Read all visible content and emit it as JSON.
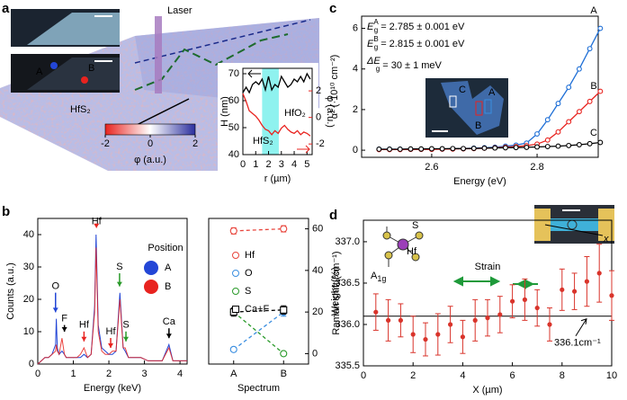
{
  "chart_data": [
    {
      "type": "line",
      "label": "a",
      "annotations": [
        "Laser",
        "HfS₂"
      ],
      "image_labels": [
        "A",
        "B"
      ],
      "inset_labels": [
        "HfS₂",
        "HfO₂"
      ],
      "highlight": [
        1.5,
        2.8
      ],
      "colorbar": {
        "lim": [
          -2,
          2
        ],
        "ticks": [
          -2,
          0,
          2
        ],
        "label": "φ (a.u.)"
      },
      "xlabel": "r (µm)",
      "ylabel": "H (nm)",
      "y2label": "φ (a.u.)",
      "xlim": [
        0,
        5.4
      ],
      "xticks": [
        0,
        1,
        2,
        3,
        4,
        5
      ],
      "ylim": [
        40,
        72
      ],
      "yticks": [
        40,
        50,
        60,
        70
      ],
      "y2lim": [
        -2.8,
        3.7
      ],
      "y2ticks": [
        -2,
        0,
        2
      ],
      "y2color": "#e8231f",
      "x": [
        0,
        0.25,
        0.5,
        0.75,
        1,
        1.25,
        1.5,
        1.75,
        2,
        2.25,
        2.5,
        2.75,
        3,
        3.25,
        3.5,
        3.75,
        4,
        4.25,
        4.5,
        4.75,
        5,
        5.25
      ],
      "series": [
        {
          "color": "#000000",
          "values": [
            63,
            65,
            63,
            66,
            67,
            66,
            68,
            64,
            69,
            64,
            66,
            65,
            69,
            67,
            65,
            66,
            68,
            67,
            69,
            67,
            70,
            68
          ]
        },
        {
          "color": "#e8231f",
          "axis": "y2",
          "values": [
            1.8,
            1.2,
            0.5,
            0.3,
            0.1,
            -0.2,
            -0.6,
            -0.9,
            -1.0,
            -1.3,
            -1.0,
            -1.2,
            -0.8,
            -0.6,
            -0.9,
            -1.1,
            -1.2,
            -1.0,
            -1.3,
            -1.1,
            -1.2,
            -1.4
          ]
        }
      ]
    },
    {
      "type": "line",
      "label": "b",
      "legend_title": "Position",
      "peaks": [
        {
          "text": "O",
          "color": "#2346d6"
        },
        {
          "text": "F",
          "color": "#000000"
        },
        {
          "text": "Hf",
          "color": "#e8231f"
        },
        {
          "text": "Hf",
          "color": "#e8231f"
        },
        {
          "text": "Hf",
          "color": "#e8231f"
        },
        {
          "text": "S",
          "color": "#2a9a2a"
        },
        {
          "text": "S",
          "color": "#2a9a2a"
        },
        {
          "text": "Ca",
          "color": "#000000"
        }
      ],
      "xlabel": "Energy (keV)",
      "ylabel": "Counts (a.u.)",
      "xlim": [
        0,
        4.2
      ],
      "xticks": [
        0,
        1,
        2,
        3,
        4
      ],
      "ylim": [
        0,
        45
      ],
      "yticks": [
        0,
        10,
        20,
        30,
        40
      ],
      "x": [
        0,
        0.1,
        0.2,
        0.3,
        0.4,
        0.5,
        0.52,
        0.55,
        0.6,
        0.68,
        0.75,
        0.8,
        0.9,
        1.0,
        1.1,
        1.2,
        1.3,
        1.4,
        1.5,
        1.6,
        1.64,
        1.7,
        1.8,
        1.9,
        2.0,
        2.1,
        2.2,
        2.31,
        2.4,
        2.46,
        2.55,
        2.7,
        2.9,
        3.1,
        3.3,
        3.5,
        3.69,
        3.8,
        4.0,
        4.2
      ],
      "series": [
        {
          "name": "A",
          "color": "#2346d6",
          "values": [
            0,
            1,
            2,
            2,
            3,
            6,
            14,
            5,
            3,
            4,
            3,
            2,
            2,
            2,
            2,
            2,
            3,
            2,
            3,
            18,
            40,
            12,
            5,
            4,
            3,
            3,
            4,
            22,
            5,
            4,
            2,
            2,
            2,
            1,
            1,
            1,
            6,
            1,
            1,
            1
          ]
        },
        {
          "name": "B",
          "color": "#e8231f",
          "values": [
            0,
            1,
            2,
            2,
            3,
            4,
            6,
            4,
            3,
            8,
            3,
            2,
            2,
            2,
            2,
            3,
            5,
            2,
            3,
            16,
            36,
            10,
            4,
            3,
            3,
            4,
            4,
            20,
            5,
            5,
            2,
            2,
            2,
            1,
            1,
            1,
            5,
            1,
            1,
            1
          ]
        }
      ]
    },
    {
      "type": "line",
      "yaxis_side": "right",
      "xlabel": "Spectrum",
      "ylabel": "Weight (%)",
      "categories": [
        "A",
        "B"
      ],
      "ylim": [
        -5,
        65
      ],
      "yticks": [
        0,
        20,
        40,
        60
      ],
      "series": [
        {
          "name": "Hf",
          "color": "#e8453c",
          "marker": "circle",
          "dashed": true,
          "values": [
            59,
            60
          ],
          "errors": [
            1.5,
            1.5
          ]
        },
        {
          "name": "O",
          "color": "#3a8ee0",
          "marker": "circle",
          "dashed": true,
          "values": [
            2,
            20
          ],
          "errors": [
            1,
            2
          ]
        },
        {
          "name": "S",
          "color": "#2a9a2a",
          "marker": "circle",
          "dashed": true,
          "values": [
            20,
            0
          ],
          "errors": [
            1,
            1
          ]
        },
        {
          "name": "Ca+F",
          "color": "#000000",
          "marker": "square",
          "dashed": true,
          "values": [
            20,
            21
          ],
          "errors": [
            2,
            2
          ]
        }
      ]
    },
    {
      "type": "line",
      "label": "c",
      "equations": [
        {
          "symbol": "E",
          "sub": "g",
          "sup": "A",
          "text": " = 2.785 ± 0.001 eV",
          "color": "#000000"
        },
        {
          "symbol": "E",
          "sub": "g",
          "sup": "B",
          "text": " = 2.815 ± 0.001 eV",
          "color": "#000000"
        },
        {
          "symbol": "ΔE",
          "sub": "g",
          "sup": "",
          "text": " = 30 ± 1 meV",
          "color": "#e8231f"
        }
      ],
      "inset_labels": [
        "C",
        "A",
        "B"
      ],
      "xlabel": "Energy (eV)",
      "ylabel": "α² (·10¹⁰ cm⁻²)",
      "xlim": [
        2.467,
        2.916
      ],
      "xticks": [
        2.6,
        2.8
      ],
      "ylim": [
        -0.35,
        6.6
      ],
      "yticks": [
        0,
        2,
        4,
        6
      ],
      "x": [
        2.5,
        2.52,
        2.54,
        2.56,
        2.58,
        2.6,
        2.62,
        2.64,
        2.66,
        2.68,
        2.7,
        2.72,
        2.74,
        2.76,
        2.78,
        2.8,
        2.82,
        2.84,
        2.86,
        2.88,
        2.9,
        2.92
      ],
      "series": [
        {
          "name": "A",
          "color": "#1f6fd6",
          "marker": "circle",
          "values": [
            0.05,
            0.05,
            0.05,
            0.05,
            0.05,
            0.05,
            0.06,
            0.07,
            0.08,
            0.1,
            0.12,
            0.15,
            0.2,
            0.25,
            0.35,
            0.8,
            1.5,
            2.3,
            3.1,
            4.0,
            5.0,
            6.0
          ]
        },
        {
          "name": "B",
          "color": "#e8231f",
          "marker": "circle",
          "values": [
            0.03,
            0.03,
            0.03,
            0.04,
            0.04,
            0.04,
            0.05,
            0.06,
            0.07,
            0.08,
            0.1,
            0.12,
            0.15,
            0.18,
            0.22,
            0.3,
            0.5,
            0.9,
            1.4,
            1.9,
            2.4,
            2.9
          ]
        },
        {
          "name": "C",
          "color": "#000000",
          "marker": "circle",
          "values": [
            0.05,
            0.05,
            0.05,
            0.06,
            0.06,
            0.07,
            0.07,
            0.08,
            0.08,
            0.09,
            0.1,
            0.11,
            0.12,
            0.13,
            0.14,
            0.16,
            0.18,
            0.2,
            0.23,
            0.27,
            0.32,
            0.38
          ]
        }
      ]
    },
    {
      "type": "scatter",
      "label": "d",
      "annotations": [
        "Strain",
        "Hf",
        "S",
        "x"
      ],
      "mode": {
        "main": "A",
        "sub": "1g"
      },
      "hline": 336.1,
      "hline_label": "336.1cm⁻¹",
      "xlabel": "X (µm)",
      "ylabel": "Raman shift (cm⁻¹)",
      "xlim": [
        0,
        10
      ],
      "xticks": [
        0,
        2,
        4,
        6,
        8,
        10
      ],
      "ylim": [
        335.5,
        337.26
      ],
      "yticks": [
        {
          "value": 335.5,
          "label": "335.5"
        },
        {
          "value": 336,
          "label": "336.0"
        },
        {
          "value": 336.5,
          "label": "336.5"
        },
        {
          "value": 337,
          "label": "337.0"
        }
      ],
      "x": [
        0.5,
        1,
        1.5,
        2,
        2.5,
        3,
        3.5,
        4,
        4.5,
        5,
        5.5,
        6,
        6.5,
        7,
        7.5,
        8,
        8.5,
        9,
        9.5,
        10
      ],
      "series": [
        {
          "color": "#d9342b",
          "marker": "dot",
          "values": [
            336.15,
            336.05,
            336.05,
            335.88,
            335.82,
            335.88,
            336.0,
            335.85,
            336.05,
            336.08,
            336.12,
            336.28,
            336.3,
            336.2,
            336.0,
            336.42,
            336.4,
            336.52,
            336.62,
            336.35
          ],
          "errors": [
            0.22,
            0.25,
            0.2,
            0.22,
            0.2,
            0.25,
            0.22,
            0.2,
            0.25,
            0.22,
            0.22,
            0.2,
            0.25,
            0.22,
            0.2,
            0.25,
            0.22,
            0.3,
            0.35,
            0.3
          ]
        }
      ]
    }
  ]
}
